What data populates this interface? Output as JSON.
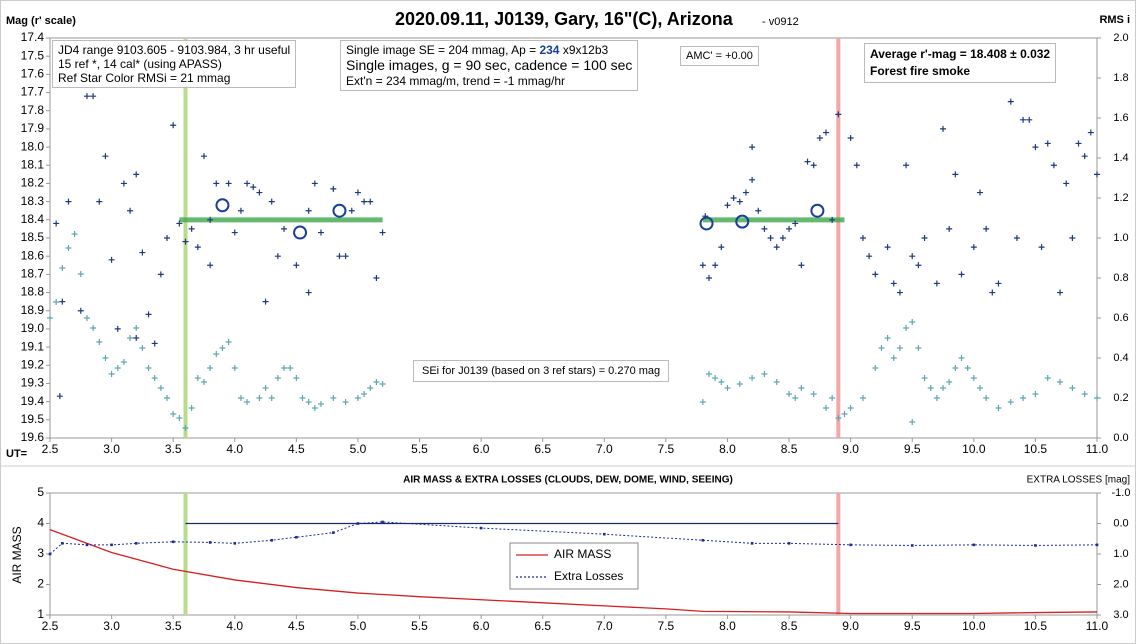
{
  "chart_data": [
    {
      "type": "scatter",
      "title": "2020.09.11, J0139, Gary, 16\"(C), Arizona",
      "subtitle": " - v0912",
      "y_label": "Mag (r' scale)",
      "y2_label": "RMS i",
      "x_label": "UT=",
      "xlim": [
        2.5,
        11.0
      ],
      "xticks": [
        2.5,
        {
          "value": 3,
          "label": "3.0"
        },
        3.5,
        {
          "value": 4,
          "label": "4.0"
        },
        4.5,
        {
          "value": 5,
          "label": "5.0"
        },
        5.5,
        {
          "value": 6,
          "label": "6.0"
        },
        6.5,
        {
          "value": 7,
          "label": "7.0"
        },
        7.5,
        {
          "value": 8,
          "label": "8.0"
        },
        8.5,
        {
          "value": 9,
          "label": "9.0"
        },
        9.5,
        {
          "value": 10,
          "label": "10.0"
        },
        10.5,
        {
          "value": 11,
          "label": "11.0"
        }
      ],
      "ylim": [
        19.6,
        17.4
      ],
      "yticks": [
        17.4,
        17.5,
        17.6,
        17.7,
        17.8,
        17.9,
        {
          "value": 18,
          "label": "18.0"
        },
        18.1,
        18.2,
        18.3,
        18.4,
        18.5,
        18.6,
        18.7,
        18.8,
        18.9,
        {
          "value": 19,
          "label": "19.0"
        },
        19.1,
        19.2,
        19.3,
        19.4,
        19.5,
        19.6
      ],
      "y2lim": [
        0,
        2
      ],
      "y2ticks": [
        {
          "value": 0,
          "label": "0.0"
        },
        0.2,
        0.4,
        0.6,
        0.8,
        {
          "value": 1,
          "label": "1.0"
        },
        1.2,
        1.4,
        1.6,
        1.8,
        {
          "value": 2,
          "label": "2.0"
        }
      ],
      "series": [
        {
          "color": "#1f3a7a",
          "marker": "plus",
          "x": [
            2.55,
            2.58,
            2.6,
            2.65,
            2.7,
            2.75,
            2.8,
            2.85,
            2.9,
            2.95,
            3.0,
            3.05,
            3.1,
            3.15,
            3.2,
            3.2,
            3.25,
            3.3,
            3.35,
            3.4,
            3.45,
            3.5,
            3.55,
            3.6,
            3.65,
            3.7,
            3.7,
            3.75,
            3.8,
            3.8,
            3.85,
            3.95,
            4.0,
            4.05,
            4.1,
            4.15,
            4.2,
            4.25,
            4.3,
            4.35,
            4.4,
            4.5,
            4.6,
            4.6,
            4.65,
            4.7,
            4.8,
            4.85,
            4.9,
            4.95,
            5.0,
            5.05,
            5.1,
            5.15,
            5.2,
            7.8,
            7.82,
            7.85,
            7.9,
            7.95,
            8.0,
            8.05,
            8.1,
            8.15,
            8.2,
            8.2,
            8.25,
            8.3,
            8.35,
            8.4,
            8.45,
            8.5,
            8.55,
            8.6,
            8.65,
            8.7,
            8.75,
            8.8,
            8.85,
            8.9,
            9.0,
            9.05,
            9.1,
            9.15,
            9.2,
            9.3,
            9.35,
            9.4,
            9.45,
            9.5,
            9.55,
            9.6,
            9.7,
            9.75,
            9.8,
            9.85,
            9.9,
            10.0,
            10.05,
            10.1,
            10.15,
            10.2,
            10.3,
            10.35,
            10.4,
            10.45,
            10.5,
            10.55,
            10.6,
            10.65,
            10.7,
            10.75,
            10.8,
            10.85,
            10.9,
            10.95,
            11.0
          ],
          "values": [
            18.42,
            19.37,
            18.85,
            18.3,
            17.62,
            18.9,
            17.72,
            17.72,
            18.3,
            18.05,
            18.62,
            19.0,
            18.2,
            18.35,
            18.15,
            19.05,
            18.58,
            18.92,
            19.08,
            18.7,
            18.5,
            17.88,
            18.42,
            18.52,
            18.45,
            18.55,
            17.65,
            18.05,
            18.4,
            18.65,
            18.2,
            18.2,
            18.47,
            18.35,
            18.2,
            18.22,
            18.25,
            18.85,
            18.3,
            18.6,
            18.45,
            18.65,
            18.35,
            18.8,
            18.2,
            18.47,
            18.23,
            18.6,
            18.6,
            18.35,
            18.25,
            18.3,
            18.3,
            18.72,
            18.47,
            18.65,
            18.38,
            18.72,
            18.65,
            18.55,
            18.32,
            18.28,
            18.3,
            18.25,
            18.18,
            18.0,
            18.35,
            18.45,
            18.5,
            18.55,
            18.5,
            18.45,
            18.42,
            18.65,
            18.08,
            18.1,
            17.95,
            17.92,
            18.4,
            17.82,
            17.95,
            18.1,
            18.5,
            18.6,
            18.7,
            18.55,
            18.75,
            18.8,
            18.1,
            18.6,
            18.65,
            18.5,
            18.75,
            17.9,
            18.45,
            18.15,
            18.7,
            18.55,
            18.25,
            18.45,
            18.8,
            18.75,
            17.75,
            18.5,
            17.85,
            17.85,
            18.0,
            18.55,
            17.98,
            18.1,
            18.8,
            18.2,
            18.5,
            17.98,
            18.05,
            17.92,
            18.15
          ]
        },
        {
          "color": "#5fa8b0",
          "marker": "plus",
          "axis": "y2",
          "x": [
            2.5,
            2.55,
            2.6,
            2.65,
            2.7,
            2.75,
            2.8,
            2.85,
            2.9,
            2.95,
            3.0,
            3.05,
            3.1,
            3.15,
            3.2,
            3.25,
            3.3,
            3.35,
            3.4,
            3.45,
            3.5,
            3.55,
            3.6,
            3.65,
            3.7,
            3.75,
            3.8,
            3.85,
            3.9,
            3.95,
            4.0,
            4.05,
            4.1,
            4.2,
            4.25,
            4.3,
            4.35,
            4.4,
            4.45,
            4.5,
            4.55,
            4.6,
            4.65,
            4.7,
            4.8,
            4.9,
            5.0,
            5.05,
            5.1,
            5.15,
            5.2,
            7.8,
            7.85,
            7.9,
            7.95,
            8.0,
            8.1,
            8.2,
            8.3,
            8.4,
            8.5,
            8.55,
            8.6,
            8.7,
            8.8,
            8.85,
            8.9,
            8.95,
            9.0,
            9.1,
            9.2,
            9.25,
            9.3,
            9.35,
            9.4,
            9.45,
            9.5,
            9.5,
            9.55,
            9.6,
            9.65,
            9.7,
            9.75,
            9.8,
            9.85,
            9.9,
            9.95,
            10.0,
            10.05,
            10.1,
            10.2,
            10.3,
            10.4,
            10.5,
            10.6,
            10.7,
            10.8,
            10.9,
            11.0
          ],
          "values": [
            0.6,
            0.68,
            0.85,
            0.95,
            1.02,
            0.82,
            0.6,
            0.55,
            0.48,
            0.4,
            0.32,
            0.35,
            0.38,
            0.5,
            0.55,
            0.45,
            0.35,
            0.3,
            0.25,
            0.2,
            0.12,
            0.1,
            0.05,
            0.15,
            0.3,
            0.28,
            0.35,
            0.42,
            0.45,
            0.48,
            0.35,
            0.2,
            0.18,
            0.2,
            0.25,
            0.2,
            0.3,
            0.35,
            0.35,
            0.3,
            0.2,
            0.18,
            0.15,
            0.17,
            0.2,
            0.18,
            0.2,
            0.22,
            0.25,
            0.28,
            0.27,
            0.18,
            0.32,
            0.3,
            0.28,
            0.25,
            0.27,
            0.3,
            0.32,
            0.28,
            0.22,
            0.2,
            0.25,
            0.22,
            0.15,
            0.2,
            0.1,
            0.12,
            0.15,
            0.2,
            0.35,
            0.45,
            0.5,
            0.4,
            0.45,
            0.55,
            0.58,
            0.08,
            0.45,
            0.3,
            0.25,
            0.2,
            0.25,
            0.28,
            0.35,
            0.4,
            0.35,
            0.3,
            0.25,
            0.2,
            0.15,
            0.18,
            0.2,
            0.22,
            0.3,
            0.28,
            0.25,
            0.22,
            0.2
          ]
        },
        {
          "color": "#1a3f9a",
          "marker": "circle",
          "x": [
            3.9,
            4.53,
            4.85,
            7.83,
            8.12,
            8.73
          ],
          "values": [
            18.32,
            18.47,
            18.35,
            18.42,
            18.41,
            18.35
          ]
        }
      ],
      "hlines": [
        {
          "value": 18.4,
          "from": 3.55,
          "to": 5.2,
          "color": "#3fa84a"
        },
        {
          "value": 18.4,
          "from": 7.8,
          "to": 8.95,
          "color": "#3fa84a"
        }
      ],
      "vlines": [
        {
          "value": 3.6,
          "color": "#b8dc8c"
        },
        {
          "value": 8.9,
          "color": "#f2a8a8"
        }
      ],
      "annotations": {
        "box1": [
          "JD4 range 9103.605 - 9103.984, 3 hr useful",
          "15 ref *, 14 cal* (using APASS)",
          "Ref Star Color RMSi = 21 mmag"
        ],
        "box2a": [
          "Single image SE = 204 mmag, Ap = ",
          "234",
          " x9x12b3"
        ],
        "box2": [
          "Single images, g = 90 sec, cadence = 100 sec",
          "Ext'n = 234 mmag/m, trend = -1 mmag/hr"
        ],
        "amc": "AMC' = +0.00",
        "avg": [
          "Average r'-mag =  18.408 ± 0.032",
          "Forest fire smoke"
        ],
        "sei": "SEi for J0139 (based on 3 ref stars) = 0.270 mag"
      }
    },
    {
      "type": "line",
      "title": "AIR MASS & EXTRA LOSSES (CLOUDS, DEW, DOME, WIND, SEEING)",
      "y_label": "AIR MASS",
      "y2_label": "EXTRA LOSSES [mag]",
      "xlim": [
        2.5,
        11.0
      ],
      "xticks": [
        2.5,
        {
          "value": 3,
          "label": "3.0"
        },
        3.5,
        {
          "value": 4,
          "label": "4.0"
        },
        4.5,
        {
          "value": 5,
          "label": "5.0"
        },
        5.5,
        {
          "value": 6,
          "label": "6.0"
        },
        6.5,
        {
          "value": 7,
          "label": "7.0"
        },
        7.5,
        {
          "value": 8,
          "label": "8.0"
        },
        8.5,
        {
          "value": 9,
          "label": "9.0"
        },
        9.5,
        {
          "value": 10,
          "label": "10.0"
        },
        10.5,
        {
          "value": 11,
          "label": "11.0"
        }
      ],
      "ylim": [
        1,
        5
      ],
      "yticks": [
        1,
        2,
        3,
        4,
        5
      ],
      "y2lim": [
        3,
        -1
      ],
      "y2ticks": [
        {
          "value": -1,
          "label": "-1.0"
        },
        {
          "value": 0,
          "label": "0.0"
        },
        {
          "value": 1,
          "label": "1.0"
        },
        {
          "value": 2,
          "label": "2.0"
        },
        {
          "value": 3,
          "label": "3.0"
        }
      ],
      "series": [
        {
          "name": "AIR MASS",
          "color": "#d42020",
          "dash": false,
          "x": [
            2.5,
            3.0,
            3.5,
            4.0,
            4.5,
            5.0,
            5.5,
            6.0,
            6.5,
            7.0,
            7.5,
            7.8,
            8.5,
            9.0,
            9.5,
            10.0,
            10.5,
            11.0
          ],
          "values": [
            3.8,
            3.05,
            2.5,
            2.15,
            1.9,
            1.72,
            1.6,
            1.5,
            1.4,
            1.3,
            1.2,
            1.12,
            1.1,
            1.05,
            1.05,
            1.05,
            1.08,
            1.1
          ]
        },
        {
          "name": "Extra Losses",
          "color": "#1a2a9a",
          "dash": true,
          "axis": "y2",
          "x": [
            2.5,
            2.6,
            2.8,
            3.0,
            3.2,
            3.5,
            3.8,
            4.0,
            4.3,
            4.5,
            4.8,
            5.0,
            5.2,
            6.0,
            7.0,
            7.8,
            8.2,
            8.5,
            9.0,
            9.5,
            10.0,
            10.5,
            11.0
          ],
          "values": [
            1.0,
            0.65,
            0.7,
            0.7,
            0.65,
            0.6,
            0.62,
            0.65,
            0.55,
            0.45,
            0.3,
            0.0,
            -0.05,
            0.15,
            0.35,
            0.55,
            0.65,
            0.65,
            0.7,
            0.72,
            0.7,
            0.72,
            0.7
          ]
        }
      ],
      "hlines": [
        {
          "value": 0,
          "axis": "y2",
          "from": 3.6,
          "to": 8.9,
          "color": "#1a2a6a"
        }
      ],
      "vlines": [
        {
          "value": 3.6,
          "color": "#b8dc8c"
        },
        {
          "value": 8.9,
          "color": "#f2a8a8"
        }
      ]
    }
  ]
}
